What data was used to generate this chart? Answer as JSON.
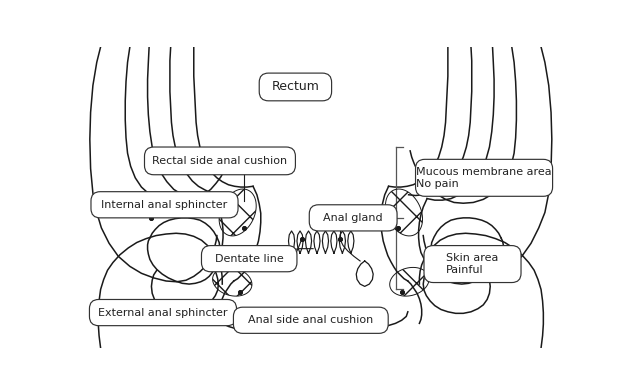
{
  "labels": {
    "rectum": "Rectum",
    "rectal_side": "Rectal side anal cushion",
    "internal": "Internal anal sphincter",
    "dentate": "Dentate line",
    "external": "External anal sphincter",
    "anal_gland": "Anal gland",
    "anal_side": "Anal side anal cushion",
    "mucous": "Mucous membrane area\nNo pain",
    "skin": "Skin area\nPainful"
  },
  "bg_color": "#ffffff",
  "line_color": "#1a1a1a"
}
